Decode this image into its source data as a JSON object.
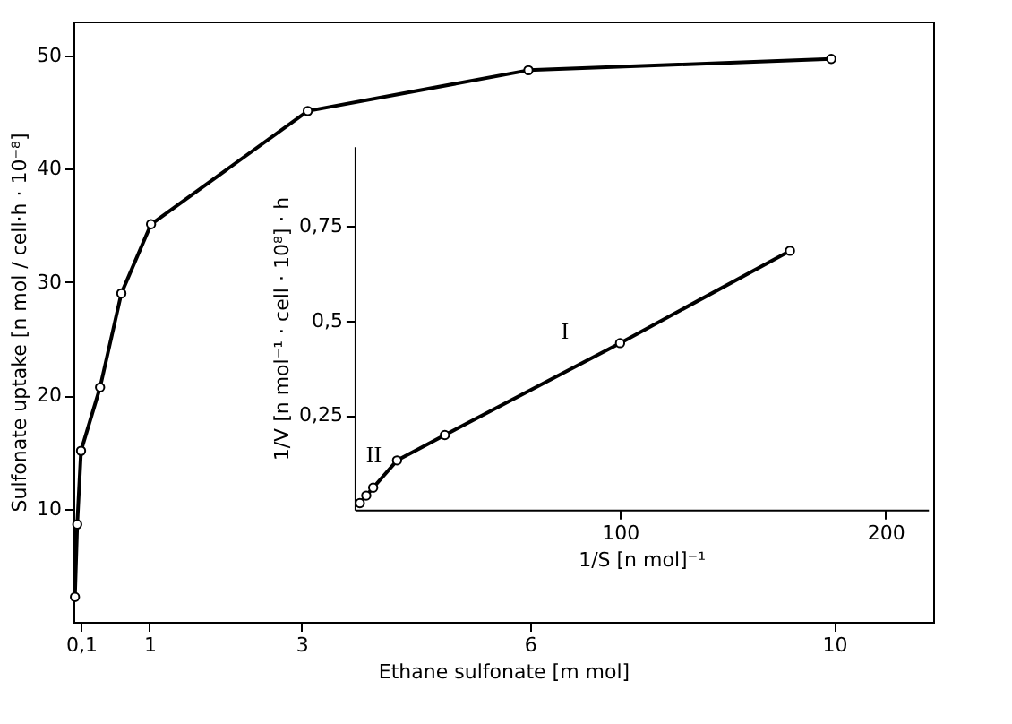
{
  "chart_data": [
    {
      "type": "line",
      "xlabel": "Ethane sulfonate  [m mol]",
      "ylabel": "Sulfonate uptake [n mol / cell·h · 10⁻⁸]",
      "x": [
        0.02,
        0.05,
        0.1,
        0.35,
        0.63,
        1.02,
        3.08,
        5.98,
        9.96
      ],
      "values": [
        2.2,
        8.6,
        15.1,
        20.7,
        29.0,
        35.1,
        45.1,
        48.7,
        49.7
      ],
      "color": "#000000",
      "marker": "circle",
      "line_style": "solid",
      "xlim": [
        0,
        11.3
      ],
      "ylim": [
        0,
        53
      ],
      "xticks": [
        {
          "value": 0.1,
          "label": "0,1"
        },
        1,
        3,
        6,
        10
      ],
      "yticks": [
        10,
        20,
        30,
        40,
        50
      ]
    },
    {
      "type": "line",
      "xlabel": "1/S  [n mol]⁻¹",
      "ylabel": "1/V [n mol⁻¹ · cell · 10⁸] · h",
      "x": [
        2.0,
        4.4,
        7,
        16,
        34,
        100,
        164
      ],
      "values": [
        0.017,
        0.037,
        0.058,
        0.13,
        0.197,
        0.44,
        0.684
      ],
      "color": "#000000",
      "marker": "circle",
      "line_style": "solid",
      "xlim": [
        0,
        216
      ],
      "ylim": [
        0,
        0.96
      ],
      "xticks": [
        100,
        200
      ],
      "yticks": [
        {
          "value": 0.25,
          "label": "0,25"
        },
        {
          "value": 0.5,
          "label": "0,5"
        },
        {
          "value": 0.75,
          "label": "0,75"
        }
      ],
      "annotations": [
        "I",
        "II"
      ]
    }
  ]
}
